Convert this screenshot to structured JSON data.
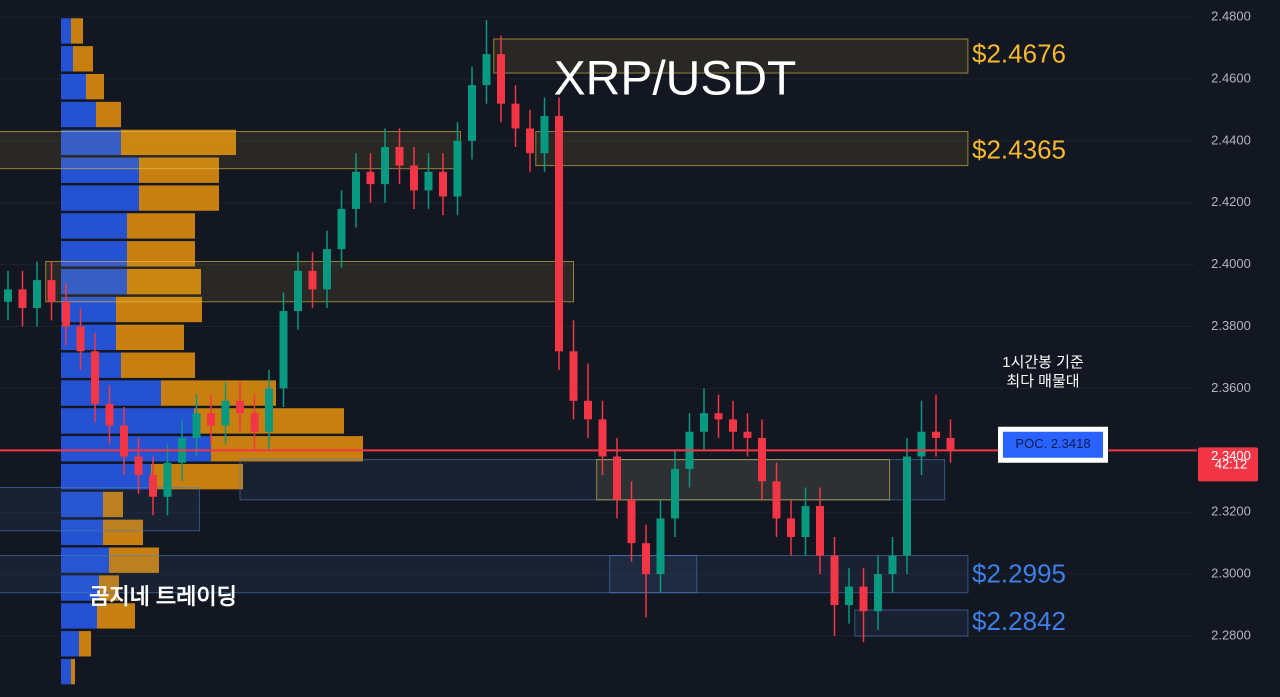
{
  "chart_data": {
    "type": "candlestick",
    "title": "XRP/USDT",
    "watermark": "곰지네 트레이딩",
    "annotation": [
      "1시간봉 기준",
      "최다 매물대"
    ],
    "poc": {
      "value": 2.3418,
      "label": "POC. 2.3418"
    },
    "last_price": {
      "value": 2.34,
      "label": "2.3400",
      "color": "#f23645"
    },
    "countdown": "42:12",
    "ylim": [
      2.2603,
      2.4855
    ],
    "yticks": [
      {
        "value": 2.48,
        "label": "2.4800"
      },
      {
        "value": 2.46,
        "label": "2.4600"
      },
      {
        "value": 2.44,
        "label": "2.4400"
      },
      {
        "value": 2.42,
        "label": "2.4200"
      },
      {
        "value": 2.4,
        "label": "2.4000"
      },
      {
        "value": 2.38,
        "label": "2.3800"
      },
      {
        "value": 2.36,
        "label": "2.3600"
      },
      {
        "value": 2.32,
        "label": "2.3200"
      },
      {
        "value": 2.3,
        "label": "2.3000"
      },
      {
        "value": 2.28,
        "label": "2.2800"
      }
    ],
    "grid": true,
    "up_color": "#089981",
    "down_color": "#f23645",
    "open": [
      2.388,
      2.392,
      2.386,
      2.395,
      2.388,
      2.38,
      2.372,
      2.355,
      2.348,
      2.338,
      2.332,
      2.325,
      2.336,
      2.344,
      2.352,
      2.348,
      2.356,
      2.352,
      2.346,
      2.36,
      2.385,
      2.398,
      2.392,
      2.405,
      2.418,
      2.43,
      2.426,
      2.438,
      2.432,
      2.424,
      2.43,
      2.422,
      2.44,
      2.458,
      2.468,
      2.452,
      2.444,
      2.436,
      2.448,
      2.372,
      2.356,
      2.35,
      2.338,
      2.324,
      2.31,
      2.3,
      2.318,
      2.334,
      2.346,
      2.352,
      2.35,
      2.346,
      2.344,
      2.33,
      2.318,
      2.312,
      2.322,
      2.306,
      2.29,
      2.296,
      2.288,
      2.3,
      2.306,
      2.338,
      2.346,
      2.344
    ],
    "high": [
      2.398,
      2.398,
      2.401,
      2.401,
      2.394,
      2.386,
      2.378,
      2.361,
      2.354,
      2.344,
      2.338,
      2.342,
      2.35,
      2.358,
      2.358,
      2.362,
      2.362,
      2.358,
      2.366,
      2.391,
      2.404,
      2.404,
      2.411,
      2.424,
      2.436,
      2.436,
      2.444,
      2.444,
      2.438,
      2.436,
      2.436,
      2.446,
      2.464,
      2.479,
      2.474,
      2.458,
      2.45,
      2.454,
      2.454,
      2.382,
      2.368,
      2.356,
      2.344,
      2.33,
      2.316,
      2.324,
      2.34,
      2.352,
      2.36,
      2.358,
      2.356,
      2.352,
      2.35,
      2.336,
      2.324,
      2.328,
      2.328,
      2.312,
      2.302,
      2.302,
      2.306,
      2.312,
      2.344,
      2.356,
      2.358,
      2.35
    ],
    "low": [
      2.382,
      2.38,
      2.38,
      2.382,
      2.374,
      2.366,
      2.349,
      2.342,
      2.332,
      2.326,
      2.319,
      2.319,
      2.33,
      2.338,
      2.342,
      2.342,
      2.346,
      2.34,
      2.34,
      2.354,
      2.379,
      2.386,
      2.386,
      2.399,
      2.412,
      2.42,
      2.42,
      2.426,
      2.418,
      2.418,
      2.416,
      2.416,
      2.434,
      2.452,
      2.446,
      2.438,
      2.43,
      2.43,
      2.366,
      2.35,
      2.344,
      2.332,
      2.318,
      2.304,
      2.286,
      2.294,
      2.312,
      2.328,
      2.34,
      2.344,
      2.34,
      2.338,
      2.324,
      2.312,
      2.306,
      2.306,
      2.3,
      2.28,
      2.284,
      2.278,
      2.282,
      2.294,
      2.3,
      2.332,
      2.338,
      2.336
    ],
    "close": [
      2.392,
      2.386,
      2.395,
      2.388,
      2.38,
      2.372,
      2.355,
      2.348,
      2.338,
      2.332,
      2.325,
      2.336,
      2.344,
      2.352,
      2.348,
      2.356,
      2.352,
      2.346,
      2.36,
      2.385,
      2.398,
      2.392,
      2.405,
      2.418,
      2.43,
      2.426,
      2.438,
      2.432,
      2.424,
      2.43,
      2.422,
      2.44,
      2.458,
      2.468,
      2.452,
      2.444,
      2.436,
      2.448,
      2.372,
      2.356,
      2.35,
      2.338,
      2.324,
      2.31,
      2.3,
      2.318,
      2.334,
      2.346,
      2.352,
      2.35,
      2.346,
      2.344,
      2.33,
      2.318,
      2.312,
      2.322,
      2.306,
      2.29,
      2.296,
      2.288,
      2.3,
      2.306,
      2.338,
      2.346,
      2.344,
      2.34
    ],
    "zones": [
      {
        "top": 2.4729,
        "bottom": 2.4619,
        "start": 33.5,
        "end": 66.2,
        "color": "#e8c547"
      },
      {
        "top": 2.443,
        "bottom": 2.431,
        "start": -1,
        "end": 31.2,
        "color": "#e8c547"
      },
      {
        "top": 2.443,
        "bottom": 2.432,
        "start": 36.4,
        "end": 66.2,
        "color": "#e8c547"
      },
      {
        "top": 2.401,
        "bottom": 2.388,
        "start": 2.6,
        "end": 39.0,
        "color": "#e8c547"
      },
      {
        "top": 2.337,
        "bottom": 2.324,
        "start": 16.0,
        "end": 64.6,
        "color": "#4a7fc1"
      },
      {
        "top": 2.337,
        "bottom": 2.324,
        "start": 40.6,
        "end": 60.8,
        "color": "#e8c547"
      },
      {
        "top": 2.328,
        "bottom": 2.314,
        "start": -1,
        "end": 13.2,
        "color": "#4a7fc1"
      },
      {
        "top": 2.306,
        "bottom": 2.294,
        "start": -1,
        "end": 47.5,
        "color": "#4a7fc1"
      },
      {
        "top": 2.306,
        "bottom": 2.294,
        "start": 41.5,
        "end": 66.2,
        "color": "#4a7fc1"
      },
      {
        "top": 2.2884,
        "bottom": 2.28,
        "start": 58.4,
        "end": 66.2,
        "color": "#4a7fc1"
      }
    ],
    "levels": [
      {
        "value": 2.4676,
        "label": "$2.4676",
        "color": "#f5b82e"
      },
      {
        "value": 2.4365,
        "label": "$2.4365",
        "color": "#f5b82e"
      },
      {
        "value": 2.2995,
        "label": "$2.2995",
        "color": "#3d7fe6"
      },
      {
        "value": 2.2842,
        "label": "$2.2842",
        "color": "#3d7fe6"
      }
    ],
    "profile": {
      "prices": [
        2.4755,
        2.4665,
        2.4575,
        2.4485,
        2.4395,
        2.4305,
        2.4215,
        2.4125,
        2.4035,
        2.3945,
        2.3855,
        2.3765,
        2.3675,
        2.3585,
        2.3495,
        2.3405,
        2.3315,
        2.3225,
        2.3135,
        2.3045,
        2.2955,
        2.2865,
        2.2775,
        2.2685
      ],
      "buy": [
        10,
        12,
        25,
        35,
        60,
        78,
        78,
        66,
        66,
        66,
        55,
        55,
        60,
        100,
        133,
        150,
        90,
        42,
        42,
        48,
        38,
        36,
        18,
        10
      ],
      "sell": [
        12,
        20,
        18,
        25,
        115,
        80,
        80,
        68,
        68,
        74,
        86,
        68,
        74,
        115,
        150,
        152,
        92,
        20,
        40,
        50,
        20,
        38,
        12,
        4
      ],
      "buy_color": "#2962ff",
      "sell_color": "#e8930c"
    }
  }
}
